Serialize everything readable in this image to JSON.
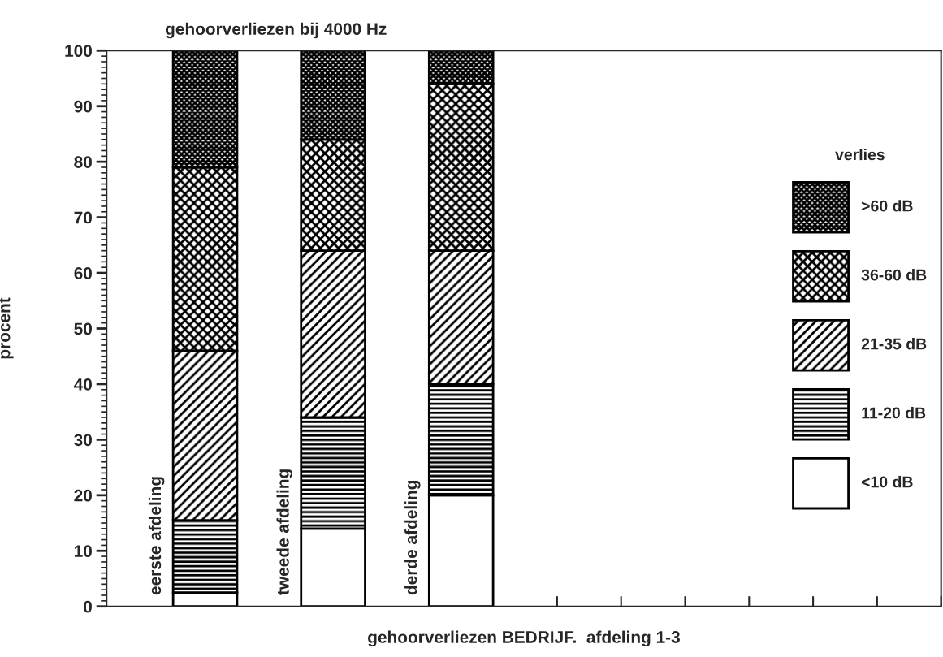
{
  "chart_data": {
    "type": "bar",
    "stacked": true,
    "title": "gehoorverliezen bij 4000 Hz",
    "xlabel": "gehoorverliezen BEDRIJF.  afdeling 1-3",
    "ylabel": "procent",
    "legend_title": "verlies",
    "legend": "right",
    "categories": [
      "eerste afdeling",
      "tweede afdeling",
      "derde afdeling"
    ],
    "series": [
      {
        "name": "<10 dB",
        "color": "#000000",
        "values": [
          2.5,
          14,
          20
        ]
      },
      {
        "name": "11-20 dB",
        "color": "#000000",
        "values": [
          13,
          20,
          20
        ]
      },
      {
        "name": "21-35 dB",
        "color": "#000000",
        "values": [
          30.5,
          30,
          24
        ]
      },
      {
        "name": "36-60 dB",
        "color": "#000000",
        "values": [
          33,
          20,
          30
        ]
      },
      {
        "name": ">60 dB",
        "color": "#000000",
        "values": [
          21,
          16,
          6
        ]
      }
    ],
    "ylim": [
      0,
      100
    ],
    "yticks": [
      0,
      10,
      20,
      30,
      40,
      50,
      60,
      70,
      80,
      90,
      100
    ],
    "grid": false
  }
}
